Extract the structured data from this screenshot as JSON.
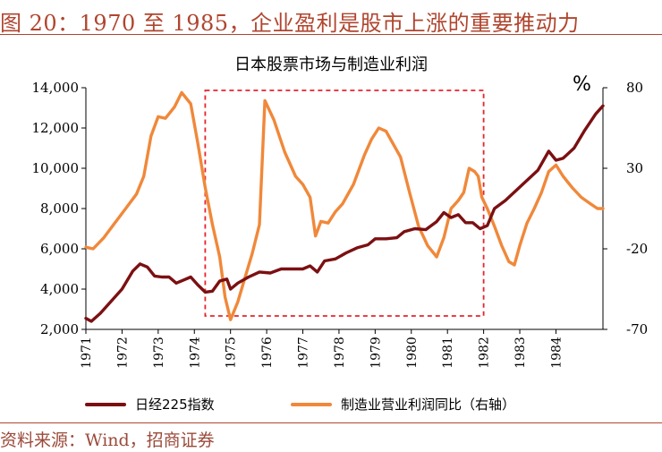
{
  "figure": {
    "title": "图 20：1970 至 1985，企业盈利是股市上涨的重要推动力",
    "source": "资料来源：Wind，招商证券"
  },
  "colors": {
    "accent": "#B0452E",
    "nikkei": "#7B1012",
    "profit": "#F0883A",
    "highlight_box": "#E8232B"
  },
  "chart_data": {
    "type": "line",
    "title": "日本股票市场与制造业利润",
    "left_axis": {
      "min": 2000,
      "max": 14000,
      "ticks": [
        2000,
        4000,
        6000,
        8000,
        10000,
        12000,
        14000
      ],
      "tick_labels": [
        "2,000",
        "4,000",
        "6,000",
        "8,000",
        "10,000",
        "12,000",
        "14,000"
      ]
    },
    "right_axis": {
      "min": -70,
      "max": 80,
      "unit": "%",
      "ticks": [
        -70,
        -20,
        30,
        80
      ],
      "tick_labels": [
        "-70",
        "-20",
        "30",
        "80"
      ]
    },
    "x_axis": {
      "min": 1971,
      "max": 1985.3,
      "ticks": [
        1971,
        1972,
        1973,
        1974,
        1975,
        1976,
        1977,
        1978,
        1979,
        1980,
        1981,
        1982,
        1983,
        1984
      ],
      "tick_labels": [
        "1971",
        "1972",
        "1973",
        "1974",
        "1975",
        "1976",
        "1977",
        "1978",
        "1979",
        "1980",
        "1981",
        "1982",
        "1983",
        "1984"
      ]
    },
    "highlight_period": [
      1974.3,
      1982.0
    ],
    "series": [
      {
        "name": "日经225指数",
        "axis": "left",
        "x": [
          1971.0,
          1971.15,
          1971.4,
          1971.7,
          1972.0,
          1972.3,
          1972.5,
          1972.7,
          1972.9,
          1973.1,
          1973.3,
          1973.5,
          1973.7,
          1973.9,
          1974.1,
          1974.3,
          1974.5,
          1974.7,
          1974.9,
          1975.0,
          1975.2,
          1975.5,
          1975.8,
          1976.1,
          1976.4,
          1976.7,
          1977.0,
          1977.2,
          1977.4,
          1977.6,
          1977.9,
          1978.2,
          1978.5,
          1978.8,
          1979.0,
          1979.3,
          1979.6,
          1979.8,
          1980.1,
          1980.4,
          1980.7,
          1980.9,
          1981.1,
          1981.3,
          1981.5,
          1981.7,
          1981.9,
          1982.1,
          1982.3,
          1982.6,
          1982.9,
          1983.2,
          1983.5,
          1983.8,
          1984.0,
          1984.2,
          1984.5,
          1984.8,
          1985.1,
          1985.3
        ],
        "values": [
          2550,
          2400,
          2800,
          3400,
          4000,
          4900,
          5250,
          5100,
          4650,
          4600,
          4600,
          4300,
          4450,
          4600,
          4200,
          3850,
          3900,
          4400,
          4500,
          4000,
          4300,
          4600,
          4850,
          4800,
          5000,
          5000,
          5000,
          5150,
          4850,
          5400,
          5500,
          5800,
          6050,
          6200,
          6500,
          6500,
          6550,
          6850,
          7000,
          6950,
          7350,
          7800,
          7550,
          7700,
          7300,
          7300,
          7000,
          7150,
          8000,
          8400,
          8900,
          9400,
          9900,
          10850,
          10400,
          10500,
          11000,
          11900,
          12700,
          13100
        ]
      },
      {
        "name": "制造业营业利润同比（右轴）",
        "axis": "right",
        "x": [
          1971.0,
          1971.2,
          1971.5,
          1971.8,
          1972.1,
          1972.4,
          1972.6,
          1972.8,
          1973.0,
          1973.2,
          1973.45,
          1973.65,
          1973.9,
          1974.1,
          1974.3,
          1974.5,
          1974.7,
          1974.85,
          1975.0,
          1975.2,
          1975.4,
          1975.6,
          1975.8,
          1975.95,
          1976.2,
          1976.5,
          1976.8,
          1977.0,
          1977.2,
          1977.35,
          1977.5,
          1977.7,
          1977.9,
          1978.1,
          1978.4,
          1978.7,
          1978.9,
          1979.1,
          1979.3,
          1979.5,
          1979.7,
          1979.95,
          1980.2,
          1980.45,
          1980.7,
          1980.9,
          1981.1,
          1981.3,
          1981.45,
          1981.6,
          1981.75,
          1981.85,
          1981.95,
          1982.1,
          1982.3,
          1982.5,
          1982.7,
          1982.85,
          1983.0,
          1983.2,
          1983.4,
          1983.6,
          1983.8,
          1984.0,
          1984.2,
          1984.45,
          1984.7,
          1984.95,
          1985.15,
          1985.3
        ],
        "values": [
          -19,
          -20,
          -13,
          -4,
          5,
          14,
          25,
          50,
          62,
          61,
          68,
          77,
          70,
          45,
          18,
          -5,
          -25,
          -50,
          -64,
          -53,
          -38,
          -23,
          -5,
          72,
          60,
          40,
          25,
          20,
          12,
          -12,
          -3,
          -4,
          3,
          8,
          20,
          38,
          48,
          55,
          53,
          45,
          37,
          15,
          -6,
          -18,
          -25,
          -13,
          5,
          10,
          15,
          30,
          28,
          25,
          12,
          5,
          -6,
          -18,
          -28,
          -30,
          -18,
          -4,
          5,
          15,
          28,
          32,
          25,
          18,
          12,
          8,
          5,
          5
        ]
      }
    ],
    "legend_position": "bottom"
  }
}
